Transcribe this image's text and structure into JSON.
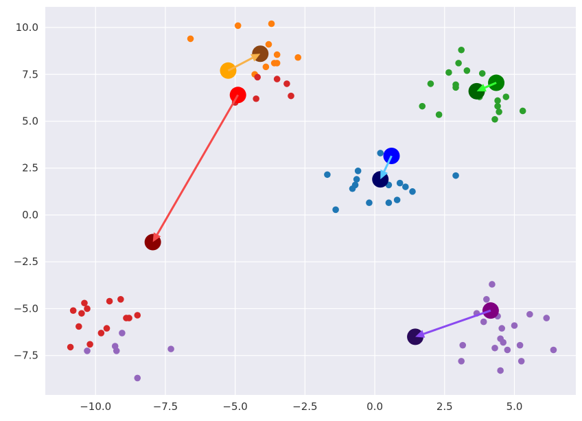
{
  "chart_data": {
    "type": "scatter",
    "title": "",
    "xlabel": "",
    "ylabel": "",
    "xlim": [
      -11.8,
      7.2
    ],
    "ylim": [
      -9.6,
      11.1
    ],
    "xticks": [
      -10,
      -7.5,
      -5,
      -2.5,
      0,
      2.5,
      5
    ],
    "xtick_labels": [
      "−10.0",
      "−7.5",
      "−5.0",
      "−2.5",
      "0.0",
      "2.5",
      "5.0"
    ],
    "yticks": [
      -7.5,
      -5,
      -2.5,
      0,
      2.5,
      5,
      7.5,
      10
    ],
    "ytick_labels": [
      "−7.5",
      "−5.0",
      "−2.5",
      "0.0",
      "2.5",
      "5.0",
      "7.5",
      "10.0"
    ],
    "grid": true,
    "colors": {
      "background": "#eaeaf2",
      "grid": "#ffffff"
    },
    "series": [
      {
        "color": "#1f77b4",
        "points": [
          [
            0.2,
            3.3
          ],
          [
            -0.6,
            2.35
          ],
          [
            -1.7,
            2.15
          ],
          [
            -0.65,
            1.9
          ],
          [
            -0.8,
            1.4
          ],
          [
            -0.7,
            1.6
          ],
          [
            0.5,
            1.6
          ],
          [
            0.9,
            1.7
          ],
          [
            1.1,
            1.5
          ],
          [
            1.35,
            1.25
          ],
          [
            2.9,
            2.1
          ],
          [
            0.8,
            0.8
          ],
          [
            0.5,
            0.65
          ],
          [
            -0.2,
            0.65
          ],
          [
            -1.4,
            0.28
          ]
        ]
      },
      {
        "color": "#ff7f0e",
        "points": [
          [
            -4.9,
            10.1
          ],
          [
            -3.7,
            10.2
          ],
          [
            -6.6,
            9.4
          ],
          [
            -3.8,
            9.1
          ],
          [
            -4.0,
            8.7
          ],
          [
            -3.5,
            8.55
          ],
          [
            -2.75,
            8.4
          ],
          [
            -3.6,
            8.1
          ],
          [
            -3.5,
            8.1
          ],
          [
            -3.9,
            7.9
          ],
          [
            -4.3,
            7.5
          ]
        ]
      },
      {
        "color": "#2ca02c",
        "points": [
          [
            3.1,
            8.8
          ],
          [
            3.0,
            8.1
          ],
          [
            3.3,
            7.7
          ],
          [
            2.65,
            7.6
          ],
          [
            3.85,
            7.55
          ],
          [
            2.0,
            7.0
          ],
          [
            2.9,
            6.95
          ],
          [
            2.9,
            6.8
          ],
          [
            3.75,
            6.3
          ],
          [
            4.4,
            6.1
          ],
          [
            4.7,
            6.3
          ],
          [
            4.4,
            5.8
          ],
          [
            4.45,
            5.5
          ],
          [
            5.3,
            5.55
          ],
          [
            1.7,
            5.8
          ],
          [
            2.3,
            5.35
          ],
          [
            4.3,
            5.1
          ]
        ]
      },
      {
        "color": "#d62728",
        "points": [
          [
            -4.2,
            7.35
          ],
          [
            -3.5,
            7.25
          ],
          [
            -3.15,
            7.0
          ],
          [
            -3.0,
            6.35
          ],
          [
            -4.25,
            6.2
          ],
          [
            -5.0,
            6.0
          ],
          [
            -10.4,
            -4.7
          ],
          [
            -10.3,
            -5.0
          ],
          [
            -10.8,
            -5.1
          ],
          [
            -10.5,
            -5.25
          ],
          [
            -9.5,
            -4.6
          ],
          [
            -9.1,
            -4.5
          ],
          [
            -8.5,
            -5.35
          ],
          [
            -8.8,
            -5.5
          ],
          [
            -8.9,
            -5.5
          ],
          [
            -10.6,
            -5.95
          ],
          [
            -9.6,
            -6.05
          ],
          [
            -9.8,
            -6.3
          ],
          [
            -10.2,
            -6.9
          ],
          [
            -10.9,
            -7.05
          ]
        ]
      },
      {
        "color": "#9467bd",
        "points": [
          [
            -9.05,
            -6.3
          ],
          [
            -9.3,
            -7.0
          ],
          [
            -9.25,
            -7.25
          ],
          [
            -7.3,
            -7.15
          ],
          [
            -10.3,
            -7.25
          ],
          [
            -8.5,
            -8.7
          ],
          [
            4.2,
            -3.7
          ],
          [
            4.0,
            -4.5
          ],
          [
            3.65,
            -5.25
          ],
          [
            4.4,
            -5.4
          ],
          [
            3.9,
            -5.7
          ],
          [
            5.55,
            -5.3
          ],
          [
            6.15,
            -5.5
          ],
          [
            5.0,
            -5.9
          ],
          [
            4.55,
            -6.05
          ],
          [
            4.5,
            -6.6
          ],
          [
            4.6,
            -6.8
          ],
          [
            3.15,
            -6.95
          ],
          [
            5.2,
            -6.95
          ],
          [
            4.3,
            -7.1
          ],
          [
            4.75,
            -7.2
          ],
          [
            6.4,
            -7.2
          ],
          [
            3.1,
            -7.8
          ],
          [
            5.25,
            -7.8
          ],
          [
            4.5,
            -8.3
          ]
        ]
      }
    ],
    "centroid_moves": [
      {
        "from": [
          -5.25,
          7.7
        ],
        "to": [
          -4.1,
          8.6
        ],
        "from_color": "#ffa500",
        "to_color": "#8b4513",
        "arrow_color": "#f7b24a"
      },
      {
        "from": [
          4.35,
          7.05
        ],
        "to": [
          3.65,
          6.6
        ],
        "from_color": "#008000",
        "to_color": "#006400",
        "arrow_color": "#33ff33"
      },
      {
        "from": [
          0.6,
          3.15
        ],
        "to": [
          0.2,
          1.9
        ],
        "from_color": "#0000ff",
        "to_color": "#000066",
        "arrow_color": "#56c8ff"
      },
      {
        "from": [
          -4.9,
          6.4
        ],
        "to": [
          -7.95,
          -1.45
        ],
        "from_color": "#ff0000",
        "to_color": "#8b0000",
        "arrow_color": "#f54a4a"
      },
      {
        "from": [
          4.15,
          -5.1
        ],
        "to": [
          1.45,
          -6.5
        ],
        "from_color": "#800080",
        "to_color": "#2a0a5a",
        "arrow_color": "#8a4af0"
      }
    ]
  }
}
